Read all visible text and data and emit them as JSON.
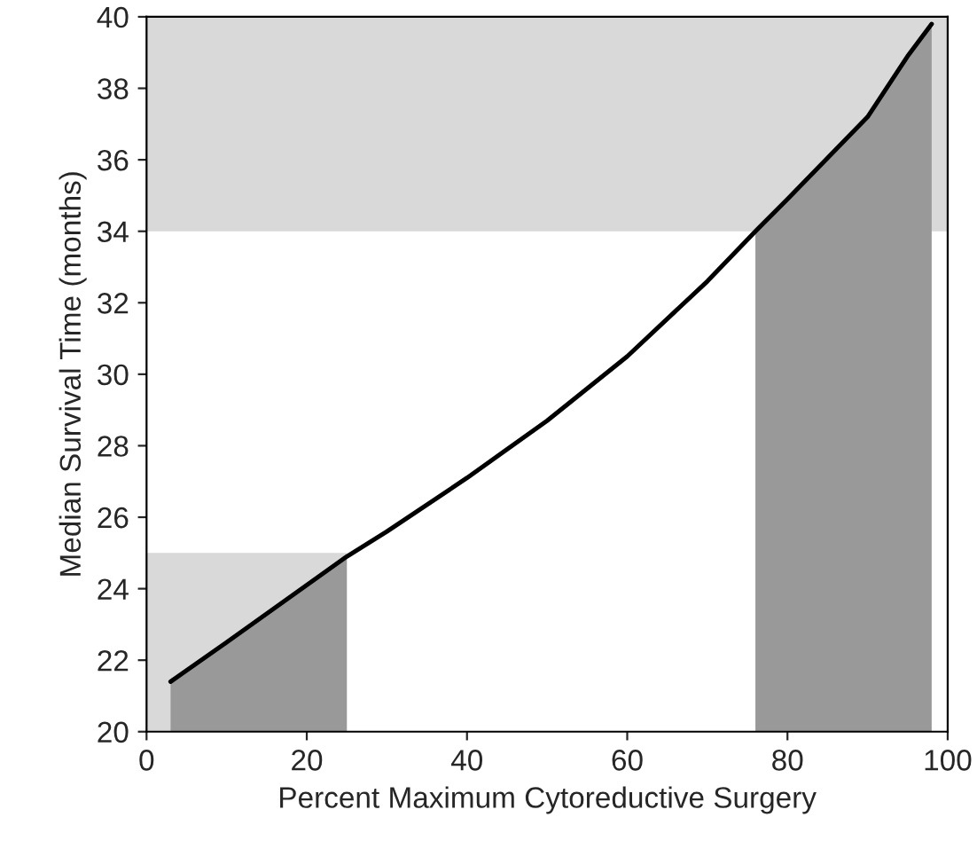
{
  "chart_data": {
    "type": "line",
    "xlabel": "Percent Maximum Cytoreductive Surgery",
    "ylabel": "Median Survival Time (months)",
    "bands": [
      {
        "axis": "y",
        "from": 34,
        "to": 40,
        "color": "#d9d9d9"
      }
    ],
    "series": [
      {
        "type": "area",
        "color": "#d9d9d9",
        "x": [
          0,
          25
        ],
        "values": [
          25,
          25
        ]
      },
      {
        "type": "area",
        "color": "#999999",
        "x": [
          3,
          10,
          20,
          25
        ],
        "values": [
          21.4,
          22.5,
          24.1,
          24.9
        ]
      },
      {
        "type": "area",
        "color": "#999999",
        "x": [
          76,
          80,
          90,
          95,
          98
        ],
        "values": [
          34.0,
          34.9,
          37.2,
          38.9,
          39.8
        ]
      },
      {
        "color": "#000000",
        "x": [
          3,
          10,
          20,
          25,
          30,
          40,
          50,
          60,
          70,
          76,
          80,
          90,
          95,
          98
        ],
        "values": [
          21.4,
          22.5,
          24.1,
          24.9,
          25.6,
          27.1,
          28.7,
          30.5,
          32.6,
          34.0,
          34.9,
          37.2,
          38.9,
          39.8
        ]
      }
    ],
    "xlim": [
      0,
      100
    ],
    "xticks": [
      0,
      20,
      40,
      60,
      80,
      100
    ],
    "ylim": [
      20,
      40
    ],
    "yticks": [
      20,
      22,
      24,
      26,
      28,
      30,
      32,
      34,
      36,
      38,
      40
    ]
  }
}
